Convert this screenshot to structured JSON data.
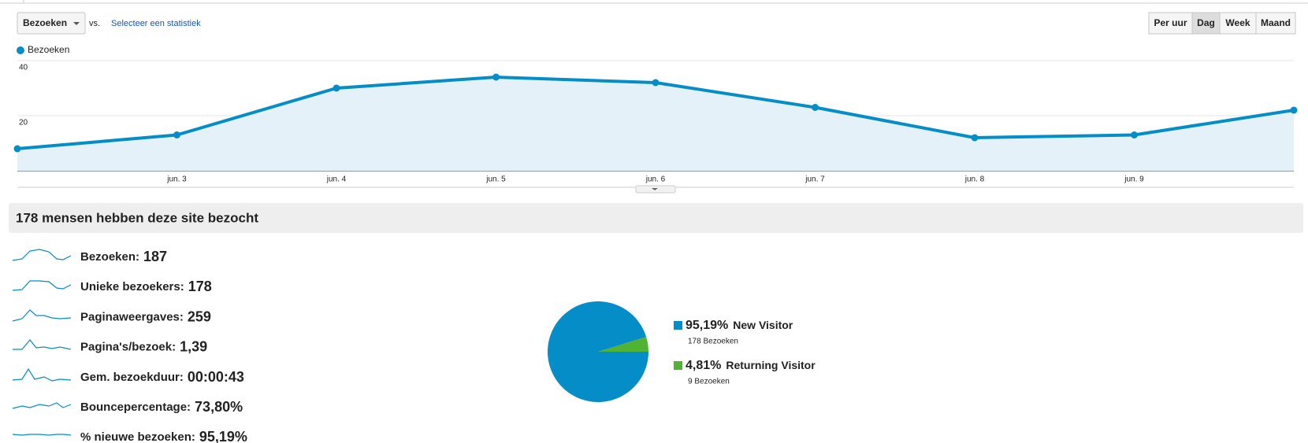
{
  "toolbar": {
    "metric": "Bezoeken",
    "vs": "vs.",
    "compare": "Selecteer een statistiek",
    "buttons": [
      "Per uur",
      "Dag",
      "Week",
      "Maand"
    ],
    "active": 1
  },
  "chart_data": [
    {
      "type": "line",
      "categories": [
        null,
        "jun. 3",
        "jun. 4",
        "jun. 5",
        "jun. 6",
        "jun. 7",
        "jun. 8",
        "jun. 9",
        null
      ],
      "series": [
        {
          "name": "Bezoeken",
          "color": "#058dc7",
          "values": [
            8,
            13,
            30,
            34,
            32,
            23,
            12,
            13,
            22
          ]
        }
      ],
      "ylim": [
        0,
        40
      ],
      "yticks": [
        20,
        40
      ],
      "grid": true,
      "area_color": "#e5f1f8"
    },
    {
      "type": "pie",
      "categories": [
        "New Visitor",
        "Returning Visitor"
      ],
      "values": [
        95.19,
        4.81
      ],
      "value_labels": [
        "95,19%",
        "4,81%"
      ],
      "details": [
        "178 Bezoeken",
        "9 Bezoeken"
      ],
      "colors": [
        "#058dc7",
        "#50b432"
      ]
    }
  ],
  "summary": {
    "title": "178 mensen hebben deze site bezocht",
    "metrics": [
      {
        "label": "Bezoeken:",
        "value": "187"
      },
      {
        "label": "Unieke bezoekers:",
        "value": "178"
      },
      {
        "label": "Paginaweergaves:",
        "value": "259"
      },
      {
        "label": "Pagina's/bezoek:",
        "value": "1,39"
      },
      {
        "label": "Gem. bezoekduur:",
        "value": "00:00:43"
      },
      {
        "label": "Bouncepercentage:",
        "value": "73,80%"
      },
      {
        "label": "% nieuwe bezoeken:",
        "value": "95,19%"
      }
    ]
  }
}
